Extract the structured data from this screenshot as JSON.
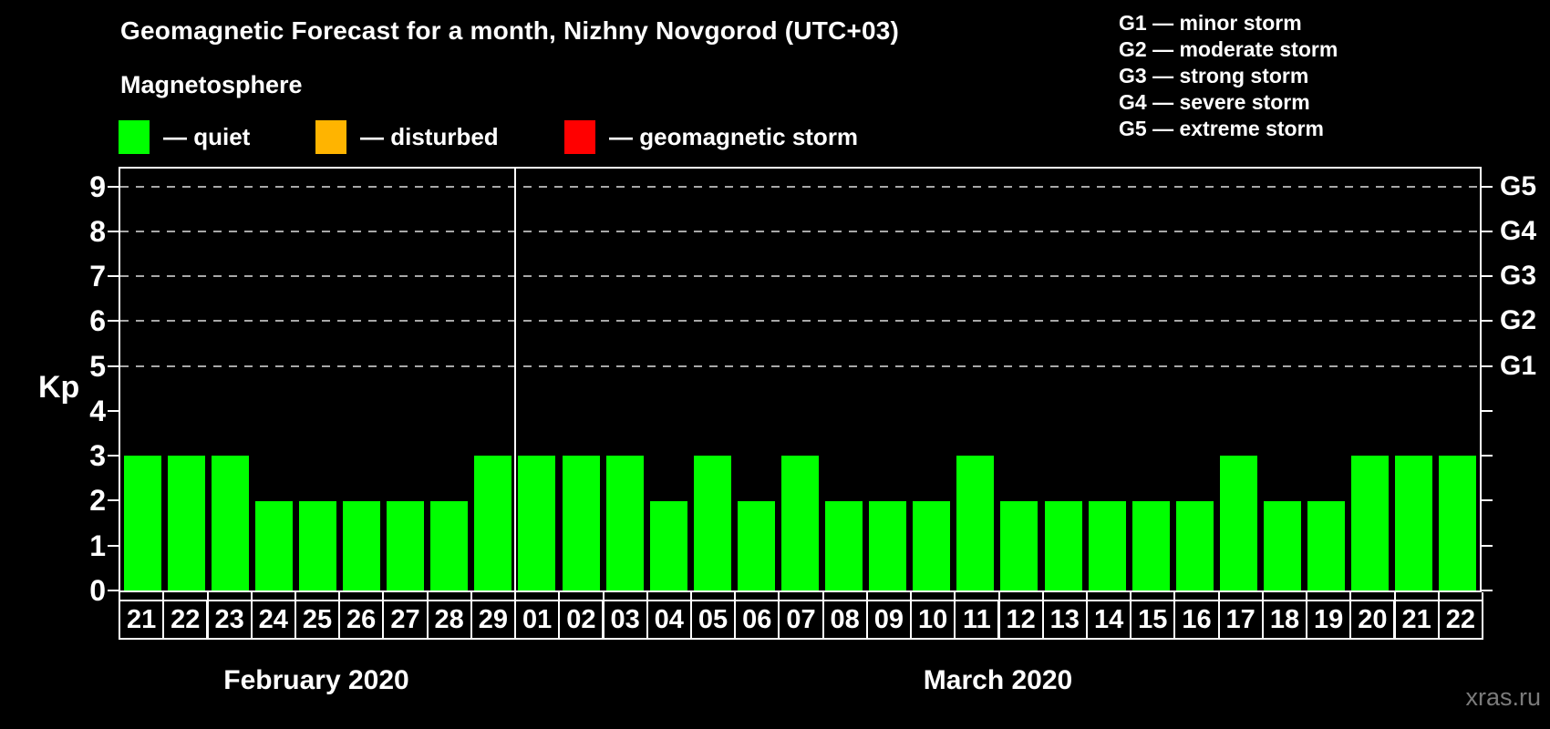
{
  "header": {
    "title": "Geomagnetic Forecast for a month, Nizhny Novgorod (UTC+03)",
    "subtitle": "Magnetosphere"
  },
  "magnetosphere_legend": [
    {
      "key": "quiet",
      "color": "#00ff00",
      "label": "— quiet"
    },
    {
      "key": "disturbed",
      "color": "#ffb400",
      "label": "— disturbed"
    },
    {
      "key": "geomagnetic-storm",
      "color": "#ff0000",
      "label": "— geomagnetic storm"
    }
  ],
  "storm_scale_legend": [
    "G1 — minor storm",
    "G2 — moderate storm",
    "G3 — strong storm",
    "G4 — severe storm",
    "G5 — extreme storm"
  ],
  "watermark": "xras.ru",
  "chart_data": {
    "type": "bar",
    "title": "Geomagnetic Forecast for a month, Nizhny Novgorod (UTC+03)",
    "ylabel": "Kp",
    "ylim": [
      0,
      9.4
    ],
    "yticks": [
      0,
      1,
      2,
      3,
      4,
      5,
      6,
      7,
      8,
      9
    ],
    "dashed_gridlines_at": [
      5,
      6,
      7,
      8,
      9
    ],
    "grid": "dashed horizontal lines at storm levels only",
    "legend_position": "top",
    "bar_color": "#00ff00",
    "right_axis": [
      {
        "kp": 5,
        "label": "G1"
      },
      {
        "kp": 6,
        "label": "G2"
      },
      {
        "kp": 7,
        "label": "G3"
      },
      {
        "kp": 8,
        "label": "G4"
      },
      {
        "kp": 9,
        "label": "G5"
      }
    ],
    "months": [
      {
        "label": "February 2020",
        "days": [
          "21",
          "22",
          "23",
          "24",
          "25",
          "26",
          "27",
          "28",
          "29"
        ],
        "values": [
          3,
          3,
          3,
          2,
          2,
          2,
          2,
          2,
          3
        ]
      },
      {
        "label": "March 2020",
        "days": [
          "01",
          "02",
          "03",
          "04",
          "05",
          "06",
          "07",
          "08",
          "09",
          "10",
          "11",
          "12",
          "13",
          "14",
          "15",
          "16",
          "17",
          "18",
          "19",
          "20",
          "21",
          "22"
        ],
        "values": [
          3,
          3,
          3,
          2,
          3,
          2,
          3,
          2,
          2,
          2,
          3,
          2,
          2,
          2,
          2,
          2,
          3,
          2,
          2,
          3,
          3,
          3
        ]
      }
    ]
  }
}
